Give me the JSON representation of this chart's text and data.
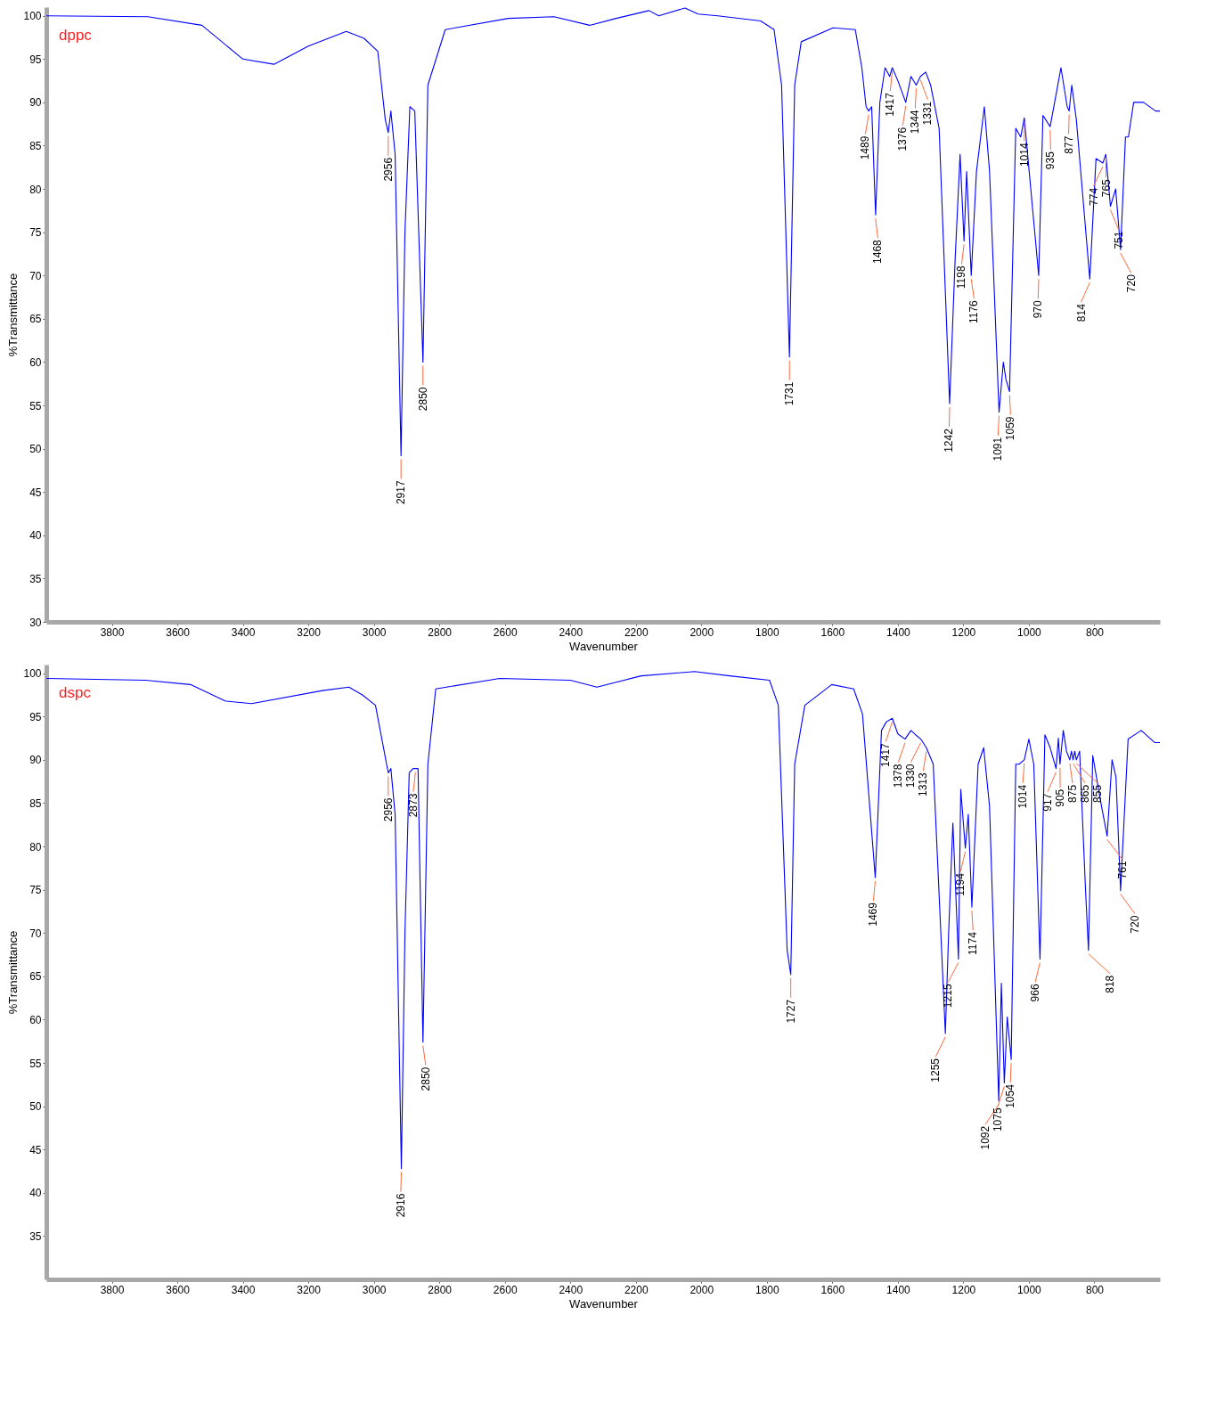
{
  "chart_data": [
    {
      "type": "line",
      "xlabel": "Wavenumber",
      "ylabel": "%Transmittance",
      "xlim": [
        4000,
        600
      ],
      "xticks": [
        3800,
        3600,
        3400,
        3200,
        3000,
        2800,
        2600,
        2400,
        2200,
        2000,
        1800,
        1600,
        1400,
        1200,
        1000,
        800
      ],
      "ylim": [
        30,
        101
      ],
      "yticks": [
        30,
        35,
        40,
        45,
        50,
        55,
        60,
        65,
        70,
        75,
        80,
        85,
        90,
        95,
        100
      ],
      "series": [
        {
          "name": "dppc",
          "color": "#0000ff",
          "x": [
            4000,
            3690,
            3525,
            3400,
            3305,
            3200,
            3084,
            3030,
            2988,
            2965,
            2956,
            2948,
            2935,
            2917,
            2905,
            2890,
            2875,
            2850,
            2835,
            2782,
            2589,
            2450,
            2341,
            2260,
            2160,
            2130,
            2050,
            2010,
            1950,
            1819,
            1778,
            1755,
            1731,
            1715,
            1695,
            1598,
            1530,
            1510,
            1497,
            1489,
            1480,
            1468,
            1455,
            1439,
            1425,
            1417,
            1400,
            1376,
            1360,
            1344,
            1331,
            1315,
            1300,
            1274,
            1242,
            1225,
            1210,
            1198,
            1190,
            1176,
            1160,
            1136,
            1120,
            1091,
            1078,
            1070,
            1059,
            1040,
            1025,
            1014,
            970,
            957,
            935,
            902,
            883,
            877,
            869,
            855,
            814,
            795,
            774,
            765,
            751,
            735,
            720,
            705,
            696,
            680,
            650,
            613,
            600
          ],
          "values": [
            100,
            99.9,
            98.9,
            95,
            94.4,
            96.5,
            98.2,
            97.4,
            95.9,
            88,
            86.5,
            89,
            84,
            49.2,
            75,
            89.5,
            89,
            60,
            92,
            98.4,
            99.7,
            99.9,
            98.9,
            99.7,
            100.6,
            100,
            100.9,
            100.2,
            100,
            99.4,
            98.4,
            92,
            60.6,
            92,
            97,
            98.6,
            98.4,
            94,
            89.5,
            89,
            89.5,
            77,
            90,
            94,
            93,
            94,
            92.5,
            90,
            93,
            92,
            93,
            93.5,
            92,
            87,
            55.2,
            72,
            84,
            74,
            82,
            70,
            82,
            89.5,
            82,
            54.2,
            60,
            58,
            56.6,
            87,
            86,
            88.2,
            70,
            88.5,
            87.2,
            94,
            89.5,
            89,
            92,
            88,
            69.6,
            83.5,
            83,
            84,
            78,
            80,
            73,
            86,
            86,
            90,
            90,
            89,
            89
          ]
        }
      ],
      "annotations": [
        {
          "text": "2956",
          "x": 2956,
          "y": 86.5
        },
        {
          "text": "2917",
          "x": 2917,
          "y": 49.2
        },
        {
          "text": "2850",
          "x": 2850,
          "y": 60
        },
        {
          "text": "1731",
          "x": 1731,
          "y": 60.6
        },
        {
          "text": "1489",
          "x": 1489,
          "y": 89
        },
        {
          "text": "1468",
          "x": 1468,
          "y": 77
        },
        {
          "text": "1417",
          "x": 1417,
          "y": 94
        },
        {
          "text": "1376",
          "x": 1376,
          "y": 90
        },
        {
          "text": "1344",
          "x": 1344,
          "y": 92
        },
        {
          "text": "1331",
          "x": 1331,
          "y": 93
        },
        {
          "text": "1242",
          "x": 1242,
          "y": 55.2
        },
        {
          "text": "1198",
          "x": 1198,
          "y": 74
        },
        {
          "text": "1176",
          "x": 1176,
          "y": 70
        },
        {
          "text": "1091",
          "x": 1091,
          "y": 54.2
        },
        {
          "text": "1059",
          "x": 1059,
          "y": 56.6
        },
        {
          "text": "1014",
          "x": 1014,
          "y": 88.2
        },
        {
          "text": "970",
          "x": 970,
          "y": 70
        },
        {
          "text": "935",
          "x": 935,
          "y": 87.2
        },
        {
          "text": "877",
          "x": 877,
          "y": 89
        },
        {
          "text": "814",
          "x": 814,
          "y": 69.6
        },
        {
          "text": "774",
          "x": 774,
          "y": 83
        },
        {
          "text": "765",
          "x": 765,
          "y": 84
        },
        {
          "text": "751",
          "x": 751,
          "y": 78
        },
        {
          "text": "720",
          "x": 720,
          "y": 73
        }
      ]
    },
    {
      "type": "line",
      "xlabel": "Wavenumber",
      "ylabel": "%Transmittance",
      "xlim": [
        4000,
        600
      ],
      "xticks": [
        3800,
        3600,
        3400,
        3200,
        3000,
        2800,
        2600,
        2400,
        2200,
        2000,
        1800,
        1600,
        1400,
        1200,
        1000,
        800
      ],
      "ylim": [
        30,
        101
      ],
      "yticks": [
        35,
        40,
        45,
        50,
        55,
        60,
        65,
        70,
        75,
        80,
        85,
        90,
        95,
        100
      ],
      "series": [
        {
          "name": "dspc",
          "color": "#0000ff",
          "x": [
            4000,
            3697,
            3560,
            3454,
            3373,
            3157,
            3076,
            3035,
            2995,
            2956,
            2948,
            2935,
            2916,
            2905,
            2892,
            2880,
            2873,
            2865,
            2850,
            2835,
            2811,
            2616,
            2400,
            2319,
            2184,
            2021,
            1913,
            1792,
            1765,
            1738,
            1727,
            1715,
            1684,
            1602,
            1535,
            1508,
            1469,
            1450,
            1435,
            1417,
            1400,
            1378,
            1360,
            1346,
            1330,
            1313,
            1292,
            1255,
            1245,
            1232,
            1215,
            1208,
            1194,
            1185,
            1174,
            1155,
            1138,
            1120,
            1092,
            1084,
            1075,
            1066,
            1054,
            1040,
            1030,
            1014,
            1000,
            985,
            966,
            951,
            935,
            917,
            910,
            905,
            895,
            885,
            875,
            870,
            865,
            860,
            855,
            845,
            827,
            818,
            805,
            778,
            761,
            746,
            734,
            720,
            697,
            657,
            616,
            600
          ],
          "values": [
            99.4,
            99.2,
            98.7,
            96.8,
            96.5,
            98,
            98.4,
            97.5,
            96.3,
            88.5,
            89,
            83.7,
            42.8,
            70,
            88.5,
            89,
            89,
            89,
            57.4,
            89.5,
            98.2,
            99.4,
            99.2,
            98.4,
            99.7,
            100.2,
            99.7,
            99.2,
            96.3,
            68,
            65.2,
            89.5,
            96.3,
            98.7,
            98.2,
            95.3,
            76.4,
            93.4,
            94.4,
            94.8,
            93,
            92.4,
            93.4,
            92.9,
            92.4,
            91.4,
            89.5,
            58.4,
            70,
            82.7,
            67,
            86.6,
            79.8,
            83.7,
            73,
            89.5,
            91.4,
            84.6,
            50.6,
            64.2,
            52.7,
            60.3,
            55.4,
            89.5,
            89.5,
            90,
            92.4,
            89.5,
            67,
            92.9,
            91.4,
            89,
            92.5,
            89.5,
            93.4,
            91,
            90,
            91,
            90,
            91,
            90,
            91,
            75,
            68,
            90.5,
            84.6,
            81.2,
            90,
            88,
            74.9,
            92.4,
            93.4,
            92,
            92
          ]
        }
      ],
      "annotations": [
        {
          "text": "2956",
          "x": 2956,
          "y": 88.5
        },
        {
          "text": "2916",
          "x": 2916,
          "y": 42.8
        },
        {
          "text": "2873",
          "x": 2873,
          "y": 89
        },
        {
          "text": "2850",
          "x": 2850,
          "y": 57.4
        },
        {
          "text": "1727",
          "x": 1727,
          "y": 65.2
        },
        {
          "text": "1469",
          "x": 1469,
          "y": 76.4
        },
        {
          "text": "1417",
          "x": 1417,
          "y": 94.8
        },
        {
          "text": "1378",
          "x": 1378,
          "y": 92.4
        },
        {
          "text": "1330",
          "x": 1330,
          "y": 92.4
        },
        {
          "text": "1313",
          "x": 1313,
          "y": 91.4
        },
        {
          "text": "1255",
          "x": 1255,
          "y": 58.4
        },
        {
          "text": "1215",
          "x": 1215,
          "y": 67
        },
        {
          "text": "1194",
          "x": 1194,
          "y": 79.8
        },
        {
          "text": "1174",
          "x": 1174,
          "y": 73
        },
        {
          "text": "1092",
          "x": 1092,
          "y": 50.6
        },
        {
          "text": "1075",
          "x": 1075,
          "y": 52.7
        },
        {
          "text": "1054",
          "x": 1054,
          "y": 55.4
        },
        {
          "text": "1014",
          "x": 1014,
          "y": 90
        },
        {
          "text": "966",
          "x": 966,
          "y": 67
        },
        {
          "text": "917",
          "x": 917,
          "y": 89
        },
        {
          "text": "905",
          "x": 905,
          "y": 89.5
        },
        {
          "text": "875",
          "x": 875,
          "y": 90
        },
        {
          "text": "865",
          "x": 865,
          "y": 90
        },
        {
          "text": "855",
          "x": 855,
          "y": 90
        },
        {
          "text": "818",
          "x": 818,
          "y": 68
        },
        {
          "text": "761",
          "x": 761,
          "y": 81.2
        },
        {
          "text": "720",
          "x": 720,
          "y": 74.9
        }
      ]
    }
  ]
}
